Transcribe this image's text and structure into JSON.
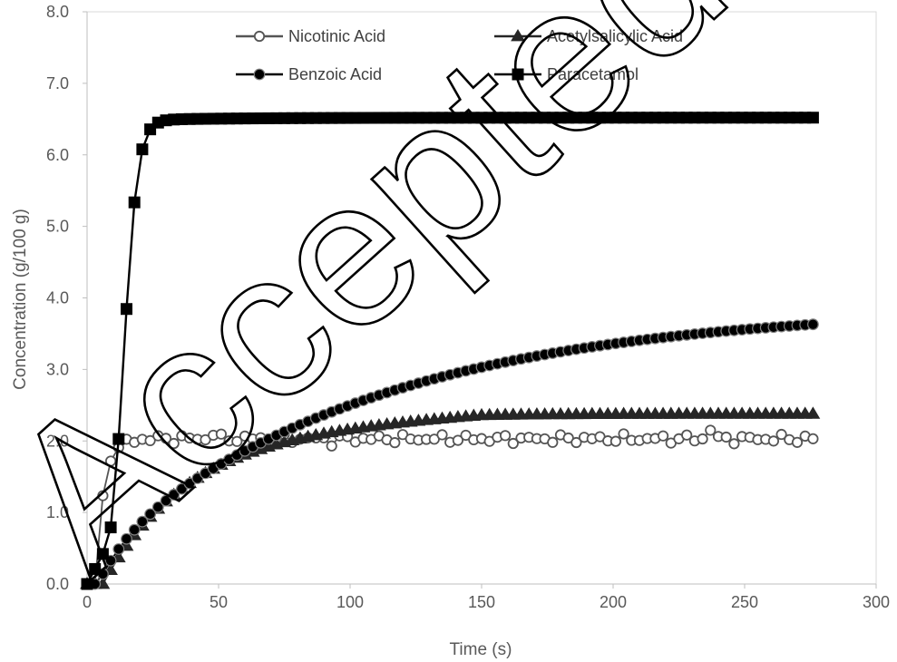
{
  "watermark": "Accepted Ma",
  "chart_data": {
    "type": "line",
    "xlabel": "Time (s)",
    "ylabel": "Concentration (g/100 g)",
    "xlim": [
      0,
      300
    ],
    "ylim": [
      0.0,
      8.0
    ],
    "x_ticks": [
      "0",
      "50",
      "100",
      "150",
      "200",
      "250",
      "300"
    ],
    "y_ticks": [
      "0.0",
      "1.0",
      "2.0",
      "3.0",
      "4.0",
      "5.0",
      "6.0",
      "7.0",
      "8.0"
    ],
    "grid": false,
    "legend_position": "top",
    "series": [
      {
        "name": "Nicotinic Acid",
        "marker": "circle-open",
        "color": "#555555",
        "model": "nicotinic"
      },
      {
        "name": "Acetylsalicylic Acid",
        "marker": "triangle",
        "color": "#262626",
        "model": "acetyl"
      },
      {
        "name": "Benzoic Acid",
        "marker": "circle",
        "color": "#000000",
        "model": "benzoic"
      },
      {
        "name": "Paracetamol",
        "marker": "square",
        "color": "#000000",
        "model": "paracetamol"
      }
    ],
    "sampling": {
      "start": 0,
      "end": 276,
      "step": 3
    },
    "sample_points": {
      "Nicotinic Acid": [
        [
          0,
          0.0
        ],
        [
          6,
          0.6
        ],
        [
          12,
          1.8
        ],
        [
          21,
          1.95
        ],
        [
          48,
          2.1
        ],
        [
          93,
          1.95
        ],
        [
          150,
          2.05
        ],
        [
          200,
          2.05
        ],
        [
          236,
          2.15
        ],
        [
          276,
          2.08
        ]
      ],
      "Acetylsalicylic Acid": [
        [
          0,
          0.0
        ],
        [
          6,
          0.0
        ],
        [
          21,
          1.1
        ],
        [
          50,
          1.75
        ],
        [
          100,
          2.08
        ],
        [
          150,
          2.2
        ],
        [
          200,
          2.3
        ],
        [
          276,
          2.35
        ]
      ],
      "Benzoic Acid": [
        [
          0,
          0.0
        ],
        [
          6,
          0.1
        ],
        [
          21,
          0.9
        ],
        [
          50,
          1.75
        ],
        [
          100,
          2.5
        ],
        [
          150,
          2.9
        ],
        [
          200,
          3.15
        ],
        [
          250,
          3.3
        ],
        [
          276,
          3.37
        ]
      ],
      "Paracetamol": [
        [
          0,
          0.0
        ],
        [
          3,
          0.2
        ],
        [
          6,
          0.42
        ],
        [
          9,
          1.48
        ],
        [
          12,
          2.7
        ],
        [
          15,
          3.95
        ],
        [
          18,
          4.75
        ],
        [
          21,
          5.33
        ],
        [
          24,
          5.72
        ],
        [
          27,
          5.88
        ],
        [
          30,
          6.02
        ],
        [
          40,
          6.25
        ],
        [
          50,
          6.35
        ],
        [
          100,
          6.5
        ],
        [
          140,
          6.53
        ],
        [
          200,
          6.51
        ],
        [
          276,
          6.5
        ]
      ]
    }
  }
}
